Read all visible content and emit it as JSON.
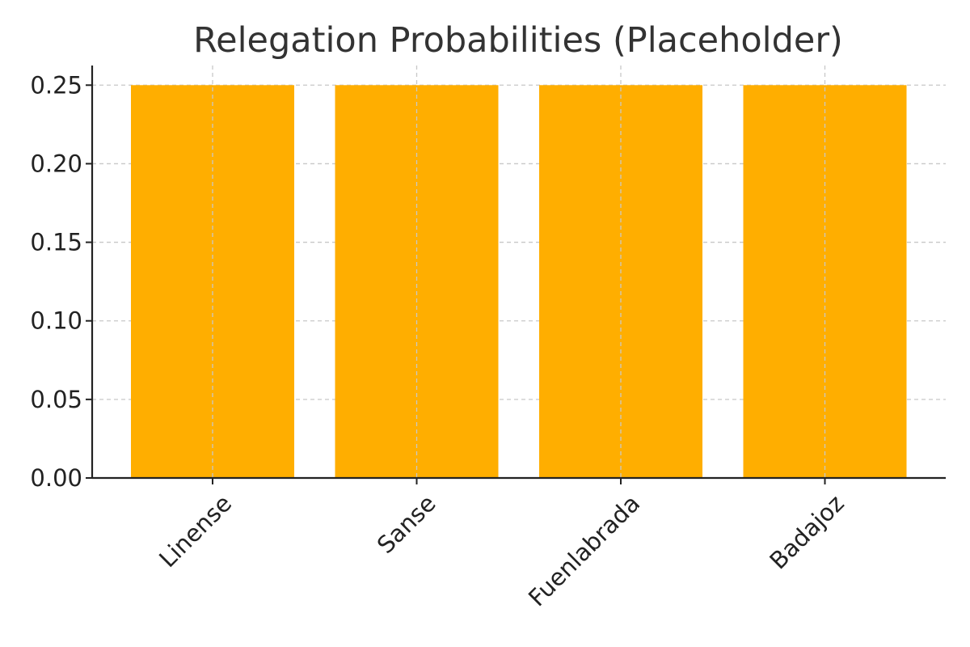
{
  "chart_data": {
    "type": "bar",
    "title": "Relegation Probabilities (Placeholder)",
    "xlabel": "",
    "ylabel": "",
    "categories": [
      "Linense",
      "Sanse",
      "Fuenlabrada",
      "Badajoz"
    ],
    "values": [
      0.25,
      0.25,
      0.25,
      0.25
    ],
    "ylim": [
      0,
      0.2625
    ],
    "yticks": [
      0.0,
      0.05,
      0.1,
      0.15,
      0.2,
      0.25
    ],
    "ytick_labels": [
      "0.00",
      "0.05",
      "0.10",
      "0.15",
      "0.20",
      "0.25"
    ],
    "grid": true,
    "x_tick_rotation_deg": 45,
    "bar_color": "#FFAE00",
    "grid_color": "#C8C8C8",
    "axis_color": "#222222",
    "title_color": "#333333"
  }
}
